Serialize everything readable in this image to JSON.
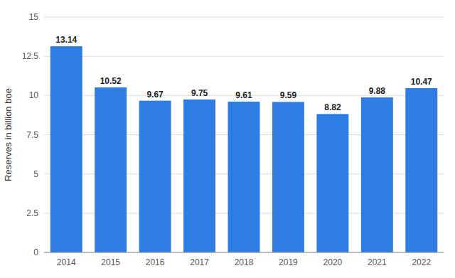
{
  "chart_data": {
    "type": "bar",
    "y_label": "Reserves in billion boe",
    "categories": [
      "2014",
      "2015",
      "2016",
      "2017",
      "2018",
      "2019",
      "2020",
      "2021",
      "2022"
    ],
    "values": [
      13.14,
      10.52,
      9.67,
      9.75,
      9.61,
      9.59,
      8.82,
      9.88,
      10.47
    ],
    "color": "#2e7de2",
    "ylim": [
      0,
      15
    ],
    "yticks": [
      0,
      2.5,
      5,
      7.5,
      10,
      12.5,
      15
    ],
    "grid": true,
    "data_labels": true
  }
}
